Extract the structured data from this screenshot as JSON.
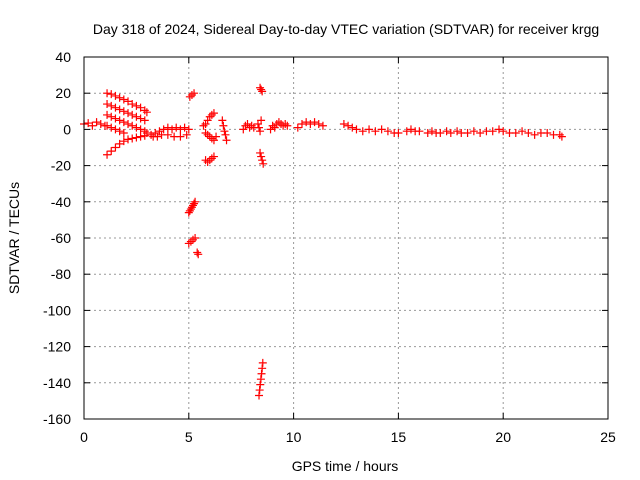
{
  "chart_data": {
    "type": "scatter",
    "title": "Day 318 of 2024, Sidereal Day-to-day VTEC variation (SDTVAR) for receiver krgg",
    "xlabel": "GPS time / hours",
    "ylabel": "SDTVAR / TECUs",
    "xlim": [
      0,
      25
    ],
    "ylim": [
      -160,
      40
    ],
    "xticks": [
      "0",
      "5",
      "10",
      "15",
      "20",
      "25"
    ],
    "yticks": [
      "40",
      "20",
      "0",
      "-20",
      "-40",
      "-60",
      "-80",
      "-100",
      "-120",
      "-140",
      "-160"
    ],
    "grid": true,
    "marker": "plus",
    "color": "#ff0000",
    "series": [
      {
        "name": "SDTVAR",
        "points": [
          [
            0.0,
            3
          ],
          [
            0.2,
            3.5
          ],
          [
            0.4,
            2
          ],
          [
            0.6,
            4
          ],
          [
            0.8,
            3
          ],
          [
            1.0,
            2
          ],
          [
            1.1,
            20
          ],
          [
            1.3,
            19.5
          ],
          [
            1.5,
            18.5
          ],
          [
            1.7,
            17.5
          ],
          [
            1.9,
            16.5
          ],
          [
            2.1,
            15.5
          ],
          [
            2.3,
            14
          ],
          [
            2.5,
            13
          ],
          [
            2.7,
            12
          ],
          [
            2.9,
            10.5
          ],
          [
            3.0,
            9.5
          ],
          [
            1.1,
            14
          ],
          [
            1.3,
            13
          ],
          [
            1.5,
            12
          ],
          [
            1.7,
            11
          ],
          [
            1.9,
            10
          ],
          [
            2.1,
            9
          ],
          [
            2.3,
            8
          ],
          [
            2.5,
            7
          ],
          [
            2.7,
            6
          ],
          [
            2.9,
            5
          ],
          [
            1.1,
            8
          ],
          [
            1.3,
            7
          ],
          [
            1.5,
            6
          ],
          [
            1.7,
            5
          ],
          [
            1.9,
            4
          ],
          [
            2.1,
            3
          ],
          [
            2.3,
            2
          ],
          [
            2.5,
            1
          ],
          [
            2.7,
            0
          ],
          [
            2.9,
            -1
          ],
          [
            3.0,
            -2
          ],
          [
            1.1,
            2
          ],
          [
            1.3,
            1
          ],
          [
            1.5,
            0
          ],
          [
            1.7,
            -1
          ],
          [
            1.9,
            -2
          ],
          [
            1.1,
            -14
          ],
          [
            1.3,
            -12
          ],
          [
            1.5,
            -10
          ],
          [
            1.7,
            -8
          ],
          [
            1.9,
            -6.5
          ],
          [
            2.1,
            -5.5
          ],
          [
            2.3,
            -5
          ],
          [
            2.5,
            -4.5
          ],
          [
            2.7,
            -4
          ],
          [
            2.9,
            -3.5
          ],
          [
            3.2,
            -3
          ],
          [
            3.4,
            -2
          ],
          [
            3.6,
            -1
          ],
          [
            3.8,
            0
          ],
          [
            4.0,
            1
          ],
          [
            4.2,
            0
          ],
          [
            4.4,
            1
          ],
          [
            4.6,
            0
          ],
          [
            4.8,
            1
          ],
          [
            5.0,
            0
          ],
          [
            3.3,
            -4
          ],
          [
            3.5,
            -4
          ],
          [
            3.7,
            -3
          ],
          [
            4.0,
            -3
          ],
          [
            4.3,
            -4
          ],
          [
            4.6,
            -4
          ],
          [
            4.9,
            -3
          ],
          [
            5.05,
            18
          ],
          [
            5.15,
            19
          ],
          [
            5.25,
            20
          ],
          [
            5.0,
            -46
          ],
          [
            5.05,
            -45
          ],
          [
            5.1,
            -44
          ],
          [
            5.15,
            -43
          ],
          [
            5.2,
            -42
          ],
          [
            5.25,
            -41
          ],
          [
            5.3,
            -40
          ],
          [
            5.0,
            -63
          ],
          [
            5.1,
            -62
          ],
          [
            5.2,
            -61
          ],
          [
            5.3,
            -60
          ],
          [
            5.4,
            -68
          ],
          [
            5.45,
            -69
          ],
          [
            5.7,
            2
          ],
          [
            5.8,
            3
          ],
          [
            5.9,
            5
          ],
          [
            6.0,
            7
          ],
          [
            6.1,
            8
          ],
          [
            6.2,
            9
          ],
          [
            5.8,
            -2
          ],
          [
            5.9,
            -3
          ],
          [
            6.0,
            -4
          ],
          [
            6.1,
            -5
          ],
          [
            6.2,
            -6
          ],
          [
            6.3,
            -4
          ],
          [
            5.8,
            -17
          ],
          [
            5.9,
            -18
          ],
          [
            6.0,
            -17
          ],
          [
            6.1,
            -16
          ],
          [
            6.2,
            -15
          ],
          [
            6.6,
            5
          ],
          [
            6.65,
            2
          ],
          [
            6.7,
            -1
          ],
          [
            6.75,
            -3
          ],
          [
            6.8,
            -6
          ],
          [
            7.6,
            0
          ],
          [
            7.7,
            2
          ],
          [
            7.8,
            3
          ],
          [
            7.9,
            1
          ],
          [
            8.0,
            2
          ],
          [
            8.1,
            1
          ],
          [
            8.3,
            3
          ],
          [
            8.35,
            1
          ],
          [
            8.4,
            -1
          ],
          [
            8.45,
            5
          ],
          [
            8.4,
            23
          ],
          [
            8.45,
            22
          ],
          [
            8.5,
            21
          ],
          [
            8.4,
            -13
          ],
          [
            8.45,
            -15
          ],
          [
            8.5,
            -17
          ],
          [
            8.55,
            -19
          ],
          [
            8.35,
            -147
          ],
          [
            8.38,
            -144
          ],
          [
            8.41,
            -141
          ],
          [
            8.44,
            -138
          ],
          [
            8.47,
            -135
          ],
          [
            8.5,
            -132
          ],
          [
            8.53,
            -129
          ],
          [
            8.9,
            0
          ],
          [
            9.0,
            2
          ],
          [
            9.1,
            1
          ],
          [
            9.2,
            3
          ],
          [
            9.3,
            4
          ],
          [
            9.4,
            3
          ],
          [
            9.5,
            2
          ],
          [
            9.6,
            3
          ],
          [
            9.7,
            2
          ],
          [
            10.2,
            1
          ],
          [
            10.4,
            3
          ],
          [
            10.6,
            4
          ],
          [
            10.8,
            3
          ],
          [
            11.0,
            4
          ],
          [
            11.2,
            3
          ],
          [
            11.4,
            2
          ],
          [
            12.4,
            3
          ],
          [
            12.6,
            2
          ],
          [
            12.8,
            1
          ],
          [
            13.0,
            0
          ],
          [
            13.3,
            -1
          ],
          [
            13.6,
            0
          ],
          [
            13.9,
            -1
          ],
          [
            14.2,
            0
          ],
          [
            14.5,
            -1
          ],
          [
            14.8,
            -2
          ],
          [
            15.0,
            -2
          ],
          [
            15.4,
            -1
          ],
          [
            15.6,
            0
          ],
          [
            15.8,
            -1
          ],
          [
            16.0,
            -1
          ],
          [
            16.4,
            -2
          ],
          [
            16.6,
            -1
          ],
          [
            16.8,
            -2
          ],
          [
            17.0,
            -2
          ],
          [
            17.3,
            -1
          ],
          [
            17.5,
            -2
          ],
          [
            17.8,
            -1
          ],
          [
            18.0,
            -2
          ],
          [
            18.3,
            -2
          ],
          [
            18.6,
            -1
          ],
          [
            18.9,
            -2
          ],
          [
            19.2,
            -1
          ],
          [
            19.5,
            -1
          ],
          [
            19.8,
            0
          ],
          [
            20.0,
            -1
          ],
          [
            20.3,
            -2
          ],
          [
            20.6,
            -2
          ],
          [
            20.9,
            -1
          ],
          [
            21.2,
            -2
          ],
          [
            21.5,
            -3
          ],
          [
            21.8,
            -2
          ],
          [
            22.1,
            -2
          ],
          [
            22.4,
            -3
          ],
          [
            22.7,
            -3
          ],
          [
            22.8,
            -4
          ]
        ]
      }
    ]
  }
}
